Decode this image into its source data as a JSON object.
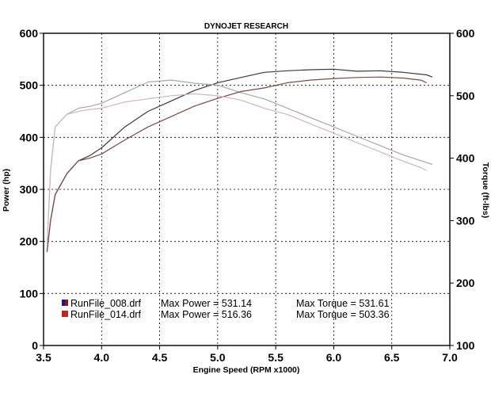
{
  "chart_data": {
    "type": "line",
    "title": "DYNOJET RESEARCH",
    "xlabel": "Engine Speed (RPM x1000)",
    "ylabel_left": "Power (hp)",
    "ylabel_right": "Torque (ft-lbs)",
    "xlim": [
      3.5,
      7.0
    ],
    "ylim_left": [
      0,
      600
    ],
    "ylim_right": [
      100,
      600
    ],
    "x_ticks": [
      "3.5",
      "4.0",
      "4.5",
      "5.0",
      "5.5",
      "6.0",
      "6.5",
      "7.0"
    ],
    "y_ticks_left": [
      "0",
      "100",
      "200",
      "300",
      "400",
      "500",
      "600"
    ],
    "y_ticks_right": [
      "100",
      "200",
      "300",
      "400",
      "500",
      "600"
    ],
    "grid": true,
    "legend_position": "bottom-left",
    "series": [
      {
        "name": "RunFile_008.drf",
        "quantity": "power",
        "axis": "left",
        "color": "#3a3a3a",
        "x": [
          3.53,
          3.56,
          3.6,
          3.65,
          3.7,
          3.8,
          3.9,
          4.0,
          4.2,
          4.4,
          4.6,
          4.8,
          5.0,
          5.2,
          5.4,
          5.6,
          5.8,
          6.0,
          6.2,
          6.4,
          6.6,
          6.8,
          6.85
        ],
        "y": [
          180,
          240,
          290,
          310,
          330,
          355,
          365,
          380,
          420,
          450,
          470,
          490,
          505,
          515,
          525,
          528,
          530,
          531,
          527,
          528,
          525,
          520,
          516
        ]
      },
      {
        "name": "RunFile_008.drf",
        "quantity": "torque",
        "axis": "right",
        "color": "#a8a8a8",
        "x": [
          3.53,
          3.56,
          3.6,
          3.7,
          3.8,
          3.9,
          4.0,
          4.2,
          4.4,
          4.6,
          4.8,
          5.0,
          5.2,
          5.4,
          5.6,
          5.8,
          6.0,
          6.2,
          6.4,
          6.6,
          6.8,
          6.85
        ],
        "y": [
          260,
          380,
          450,
          470,
          480,
          483,
          488,
          505,
          522,
          525,
          520,
          517,
          505,
          495,
          480,
          465,
          450,
          435,
          420,
          405,
          393,
          390
        ]
      },
      {
        "name": "RunFile_014.drf",
        "quantity": "power",
        "axis": "left",
        "color": "#7a4a4a",
        "x": [
          3.53,
          3.56,
          3.6,
          3.7,
          3.8,
          3.9,
          4.0,
          4.2,
          4.4,
          4.6,
          4.8,
          5.0,
          5.2,
          5.4,
          5.6,
          5.8,
          6.0,
          6.2,
          6.4,
          6.6,
          6.75,
          6.8
        ],
        "y": [
          180,
          240,
          290,
          330,
          355,
          360,
          368,
          395,
          420,
          440,
          460,
          475,
          488,
          495,
          505,
          510,
          513,
          515,
          516,
          514,
          510,
          505
        ]
      },
      {
        "name": "RunFile_014.drf",
        "quantity": "torque",
        "axis": "right",
        "color": "#d0b8b8",
        "x": [
          3.53,
          3.56,
          3.6,
          3.7,
          3.8,
          3.9,
          4.0,
          4.2,
          4.4,
          4.6,
          4.8,
          5.0,
          5.2,
          5.4,
          5.6,
          5.8,
          6.0,
          6.2,
          6.4,
          6.6,
          6.75,
          6.8
        ],
        "y": [
          260,
          380,
          450,
          470,
          475,
          478,
          480,
          490,
          495,
          500,
          503,
          500,
          493,
          480,
          470,
          455,
          440,
          425,
          410,
          395,
          385,
          380
        ]
      }
    ],
    "legend": [
      {
        "file": "RunFile_008.drf",
        "power_text": "Max Power = 531.14",
        "torque_text": "Max Torque = 531.61",
        "swatch_colors": [
          "#1a1a8a",
          "#8a1a1a"
        ]
      },
      {
        "file": "RunFile_014.drf",
        "power_text": "Max Power = 516.36",
        "torque_text": "Max Torque = 503.36",
        "swatch_colors": [
          "#c82020",
          "#b03030"
        ]
      }
    ]
  }
}
